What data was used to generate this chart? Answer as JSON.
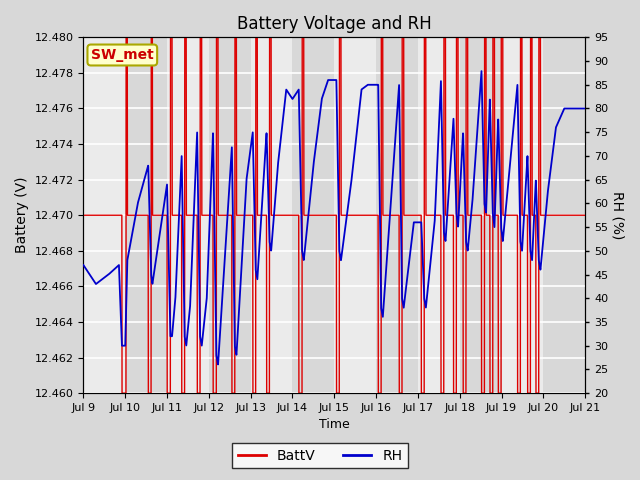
{
  "title": "Battery Voltage and RH",
  "xlabel": "Time",
  "ylabel_left": "Battery (V)",
  "ylabel_right": "RH (%)",
  "annotation": "SW_met",
  "ylim_left": [
    12.46,
    12.48
  ],
  "ylim_right": [
    20,
    95
  ],
  "yticks_left": [
    12.46,
    12.462,
    12.464,
    12.466,
    12.468,
    12.47,
    12.472,
    12.474,
    12.476,
    12.478,
    12.48
  ],
  "yticks_right": [
    20,
    25,
    30,
    35,
    40,
    45,
    50,
    55,
    60,
    65,
    70,
    75,
    80,
    85,
    90,
    95
  ],
  "xtick_labels": [
    "Jul 9",
    "Jul 10",
    "Jul 11",
    "Jul 12",
    "Jul 13",
    "Jul 14",
    "Jul 15",
    "Jul 16",
    "Jul 17",
    "Jul 18",
    "Jul 19",
    "Jul 20",
    "Jul 21"
  ],
  "bg_color": "#d8d8d8",
  "plot_bg_color": "#e8e8e8",
  "grid_color": "#ffffff",
  "battv_color": "#dd0000",
  "rh_color": "#0000cc",
  "legend_battv": "BattV",
  "legend_rh": "RH",
  "annotation_bg": "#ffffcc",
  "annotation_border": "#aaa800",
  "annotation_text_color": "#cc0000",
  "stripe_light": "#ebebeb",
  "stripe_dark": "#d8d8d8"
}
